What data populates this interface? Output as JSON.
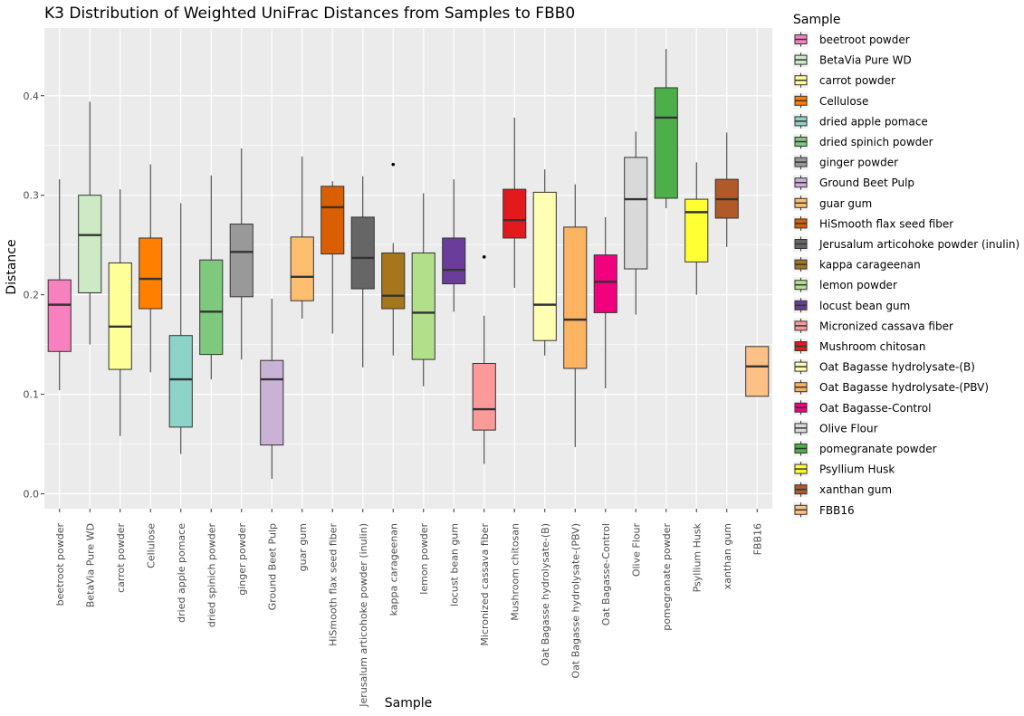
{
  "chart_data": {
    "type": "boxplot",
    "title": "K3 Distribution of Weighted UniFrac Distances from Samples to FBB0",
    "xlabel": "Sample",
    "ylabel": "Distance",
    "ylim": [
      -0.015,
      0.468
    ],
    "yticks": [
      0.0,
      0.1,
      0.2,
      0.3,
      0.4
    ],
    "ytick_labels": [
      "0.0",
      "0.1",
      "0.2",
      "0.3",
      "0.4"
    ],
    "grid": true,
    "legend": {
      "title": "Sample",
      "position": "right"
    },
    "categories": [
      {
        "name": "beetroot powder",
        "color": "#F781BF",
        "whisker_low": 0.104,
        "q1": 0.143,
        "median": 0.19,
        "q3": 0.215,
        "whisker_high": 0.316,
        "outliers": []
      },
      {
        "name": "BetaVia Pure WD",
        "color": "#CCEBC5",
        "whisker_low": 0.15,
        "q1": 0.202,
        "median": 0.26,
        "q3": 0.3,
        "whisker_high": 0.394,
        "outliers": []
      },
      {
        "name": "carrot powder",
        "color": "#FFFF99",
        "whisker_low": 0.058,
        "q1": 0.125,
        "median": 0.168,
        "q3": 0.232,
        "whisker_high": 0.306,
        "outliers": []
      },
      {
        "name": "Cellulose",
        "color": "#FF7F00",
        "whisker_low": 0.122,
        "q1": 0.186,
        "median": 0.216,
        "q3": 0.257,
        "whisker_high": 0.331,
        "outliers": []
      },
      {
        "name": "dried apple pomace",
        "color": "#8DD3C7",
        "whisker_low": 0.04,
        "q1": 0.067,
        "median": 0.115,
        "q3": 0.159,
        "whisker_high": 0.292,
        "outliers": []
      },
      {
        "name": "dried spinich powder",
        "color": "#7FC97F",
        "whisker_low": 0.115,
        "q1": 0.14,
        "median": 0.183,
        "q3": 0.235,
        "whisker_high": 0.32,
        "outliers": []
      },
      {
        "name": "ginger powder",
        "color": "#999999",
        "whisker_low": 0.135,
        "q1": 0.198,
        "median": 0.243,
        "q3": 0.271,
        "whisker_high": 0.347,
        "outliers": []
      },
      {
        "name": "Ground Beet Pulp",
        "color": "#CAB2D6",
        "whisker_low": 0.015,
        "q1": 0.049,
        "median": 0.115,
        "q3": 0.134,
        "whisker_high": 0.196,
        "outliers": []
      },
      {
        "name": "guar gum",
        "color": "#FDBF6F",
        "whisker_low": 0.176,
        "q1": 0.194,
        "median": 0.218,
        "q3": 0.258,
        "whisker_high": 0.339,
        "outliers": []
      },
      {
        "name": "HiSmooth flax seed fiber",
        "color": "#D95F02",
        "whisker_low": 0.161,
        "q1": 0.241,
        "median": 0.288,
        "q3": 0.309,
        "whisker_high": 0.314,
        "outliers": []
      },
      {
        "name": "Jerusalum articohoke powder (inulin)",
        "color": "#666666",
        "whisker_low": 0.127,
        "q1": 0.206,
        "median": 0.237,
        "q3": 0.278,
        "whisker_high": 0.319,
        "outliers": []
      },
      {
        "name": "kappa carageenan",
        "color": "#A6761D",
        "whisker_low": 0.139,
        "q1": 0.186,
        "median": 0.199,
        "q3": 0.242,
        "whisker_high": 0.252,
        "outliers": [
          0.331
        ]
      },
      {
        "name": "lemon powder",
        "color": "#B2DF8A",
        "whisker_low": 0.108,
        "q1": 0.135,
        "median": 0.182,
        "q3": 0.242,
        "whisker_high": 0.302,
        "outliers": []
      },
      {
        "name": "locust bean gum",
        "color": "#6A3D9A",
        "whisker_low": 0.183,
        "q1": 0.211,
        "median": 0.225,
        "q3": 0.257,
        "whisker_high": 0.316,
        "outliers": []
      },
      {
        "name": "Micronized cassava fiber",
        "color": "#FB9A99",
        "whisker_low": 0.03,
        "q1": 0.064,
        "median": 0.085,
        "q3": 0.131,
        "whisker_high": 0.179,
        "outliers": [
          0.238
        ]
      },
      {
        "name": "Mushroom chitosan",
        "color": "#E31A1C",
        "whisker_low": 0.207,
        "q1": 0.257,
        "median": 0.275,
        "q3": 0.306,
        "whisker_high": 0.378,
        "outliers": []
      },
      {
        "name": "Oat Bagasse hydrolysate-(B)",
        "color": "#FFFFB3",
        "whisker_low": 0.139,
        "q1": 0.154,
        "median": 0.19,
        "q3": 0.303,
        "whisker_high": 0.326,
        "outliers": []
      },
      {
        "name": "Oat Bagasse hydrolysate-(PBV)",
        "color": "#FDB462",
        "whisker_low": 0.047,
        "q1": 0.126,
        "median": 0.175,
        "q3": 0.268,
        "whisker_high": 0.311,
        "outliers": []
      },
      {
        "name": "Oat Bagasse-Control",
        "color": "#F0027F",
        "whisker_low": 0.106,
        "q1": 0.182,
        "median": 0.213,
        "q3": 0.24,
        "whisker_high": 0.278,
        "outliers": []
      },
      {
        "name": "Olive Flour",
        "color": "#D9D9D9",
        "whisker_low": 0.18,
        "q1": 0.226,
        "median": 0.296,
        "q3": 0.338,
        "whisker_high": 0.364,
        "outliers": []
      },
      {
        "name": "pomegranate powder",
        "color": "#4DAF4A",
        "whisker_low": 0.287,
        "q1": 0.297,
        "median": 0.378,
        "q3": 0.408,
        "whisker_high": 0.447,
        "outliers": []
      },
      {
        "name": "Psyllium Husk",
        "color": "#FFFF33",
        "whisker_low": 0.2,
        "q1": 0.233,
        "median": 0.283,
        "q3": 0.296,
        "whisker_high": 0.333,
        "outliers": []
      },
      {
        "name": "xanthan gum",
        "color": "#B15928",
        "whisker_low": 0.248,
        "q1": 0.277,
        "median": 0.296,
        "q3": 0.316,
        "whisker_high": 0.363,
        "outliers": []
      },
      {
        "name": "FBB16",
        "color": "#FDC086",
        "whisker_low": 0.098,
        "q1": 0.098,
        "median": 0.128,
        "q3": 0.148,
        "whisker_high": 0.148,
        "outliers": []
      }
    ]
  }
}
